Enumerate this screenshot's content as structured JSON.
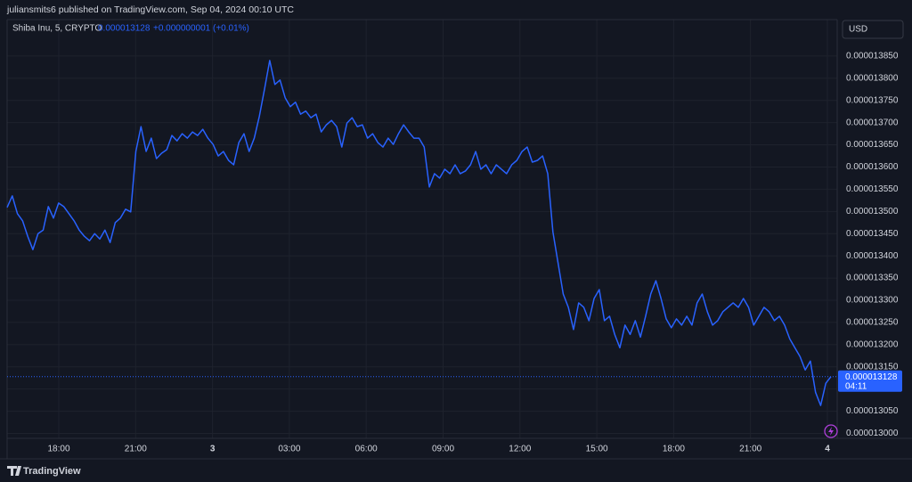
{
  "chart_data": {
    "type": "line",
    "header": "juliansmits6 published on TradingView.com, Sep 04, 2024 00:10 UTC",
    "symbol": "Shiba Inu, 5, CRYPTO",
    "last_price": 1.3128e-05,
    "change": "+0.000000001 (+0.01%)",
    "currency": "USD",
    "countdown": "04:11",
    "brand": "TradingView",
    "series": [
      {
        "name": "Shiba Inu",
        "color": "#2962ff",
        "values": [
          1.3509e-05,
          1.3535e-05,
          1.3495e-05,
          1.3479e-05,
          1.3444e-05,
          1.3414e-05,
          1.345e-05,
          1.3458e-05,
          1.3511e-05,
          1.3485e-05,
          1.3519e-05,
          1.3511e-05,
          1.3495e-05,
          1.3479e-05,
          1.3458e-05,
          1.3444e-05,
          1.3434e-05,
          1.345e-05,
          1.3438e-05,
          1.3458e-05,
          1.343e-05,
          1.3475e-05,
          1.3485e-05,
          1.3505e-05,
          1.3499e-05,
          1.3635e-05,
          1.3691e-05,
          1.3635e-05,
          1.3665e-05,
          1.3619e-05,
          1.3631e-05,
          1.3639e-05,
          1.3671e-05,
          1.3659e-05,
          1.3675e-05,
          1.3665e-05,
          1.3679e-05,
          1.3671e-05,
          1.3685e-05,
          1.3665e-05,
          1.3651e-05,
          1.3625e-05,
          1.3635e-05,
          1.3615e-05,
          1.3605e-05,
          1.3655e-05,
          1.3675e-05,
          1.3635e-05,
          1.3665e-05,
          1.3715e-05,
          1.3776e-05,
          1.384e-05,
          1.3786e-05,
          1.3796e-05,
          1.3756e-05,
          1.3736e-05,
          1.3746e-05,
          1.3719e-05,
          1.3726e-05,
          1.3711e-05,
          1.3719e-05,
          1.3679e-05,
          1.3695e-05,
          1.3705e-05,
          1.3691e-05,
          1.3645e-05,
          1.3699e-05,
          1.3711e-05,
          1.3691e-05,
          1.3695e-05,
          1.3665e-05,
          1.3675e-05,
          1.3655e-05,
          1.3645e-05,
          1.3665e-05,
          1.3651e-05,
          1.3675e-05,
          1.3695e-05,
          1.3679e-05,
          1.3665e-05,
          1.3665e-05,
          1.3645e-05,
          1.3555e-05,
          1.3585e-05,
          1.3575e-05,
          1.3595e-05,
          1.3585e-05,
          1.3605e-05,
          1.3585e-05,
          1.3591e-05,
          1.3605e-05,
          1.3635e-05,
          1.3595e-05,
          1.3605e-05,
          1.3585e-05,
          1.3605e-05,
          1.3595e-05,
          1.3585e-05,
          1.3605e-05,
          1.3615e-05,
          1.3635e-05,
          1.3645e-05,
          1.3611e-05,
          1.3615e-05,
          1.3625e-05,
          1.3585e-05,
          1.3454e-05,
          1.3384e-05,
          1.3314e-05,
          1.3284e-05,
          1.3234e-05,
          1.3294e-05,
          1.3284e-05,
          1.3254e-05,
          1.3304e-05,
          1.3324e-05,
          1.3254e-05,
          1.3264e-05,
          1.3223e-05,
          1.3193e-05,
          1.3244e-05,
          1.3223e-05,
          1.3254e-05,
          1.3217e-05,
          1.3264e-05,
          1.3314e-05,
          1.3344e-05,
          1.3304e-05,
          1.3258e-05,
          1.3238e-05,
          1.3258e-05,
          1.3244e-05,
          1.3264e-05,
          1.3244e-05,
          1.3294e-05,
          1.3314e-05,
          1.3274e-05,
          1.3244e-05,
          1.3254e-05,
          1.3274e-05,
          1.3284e-05,
          1.3294e-05,
          1.3284e-05,
          1.3304e-05,
          1.3284e-05,
          1.3244e-05,
          1.3264e-05,
          1.3284e-05,
          1.3274e-05,
          1.3254e-05,
          1.3264e-05,
          1.3244e-05,
          1.3213e-05,
          1.3193e-05,
          1.3173e-05,
          1.3143e-05,
          1.3163e-05,
          1.3093e-05,
          1.3063e-05,
          1.3113e-05,
          1.3128e-05
        ]
      }
    ],
    "x_labels": [
      "18:00",
      "21:00",
      "3",
      "03:00",
      "06:00",
      "09:00",
      "12:00",
      "15:00",
      "18:00",
      "21:00",
      "4"
    ],
    "ylim": [
      1.2989e-05,
      1.3932e-05
    ],
    "yticks": [
      {
        "value": 1.3e-05,
        "label": "0.000013000"
      },
      {
        "value": 1.305e-05,
        "label": "0.000013050"
      },
      {
        "value": 1.31e-05,
        "label": "0.000013100"
      },
      {
        "value": 1.315e-05,
        "label": "0.000013150"
      },
      {
        "value": 1.32e-05,
        "label": "0.000013200"
      },
      {
        "value": 1.325e-05,
        "label": "0.000013250"
      },
      {
        "value": 1.33e-05,
        "label": "0.000013300"
      },
      {
        "value": 1.335e-05,
        "label": "0.000013350"
      },
      {
        "value": 1.34e-05,
        "label": "0.000013400"
      },
      {
        "value": 1.345e-05,
        "label": "0.000013450"
      },
      {
        "value": 1.35e-05,
        "label": "0.000013500"
      },
      {
        "value": 1.355e-05,
        "label": "0.000013550"
      },
      {
        "value": 1.36e-05,
        "label": "0.000013600"
      },
      {
        "value": 1.365e-05,
        "label": "0.000013650"
      },
      {
        "value": 1.37e-05,
        "label": "0.000013700"
      },
      {
        "value": 1.375e-05,
        "label": "0.000013750"
      },
      {
        "value": 1.38e-05,
        "label": "0.000013800"
      },
      {
        "value": 1.385e-05,
        "label": "0.000013850"
      }
    ],
    "grid": true
  }
}
